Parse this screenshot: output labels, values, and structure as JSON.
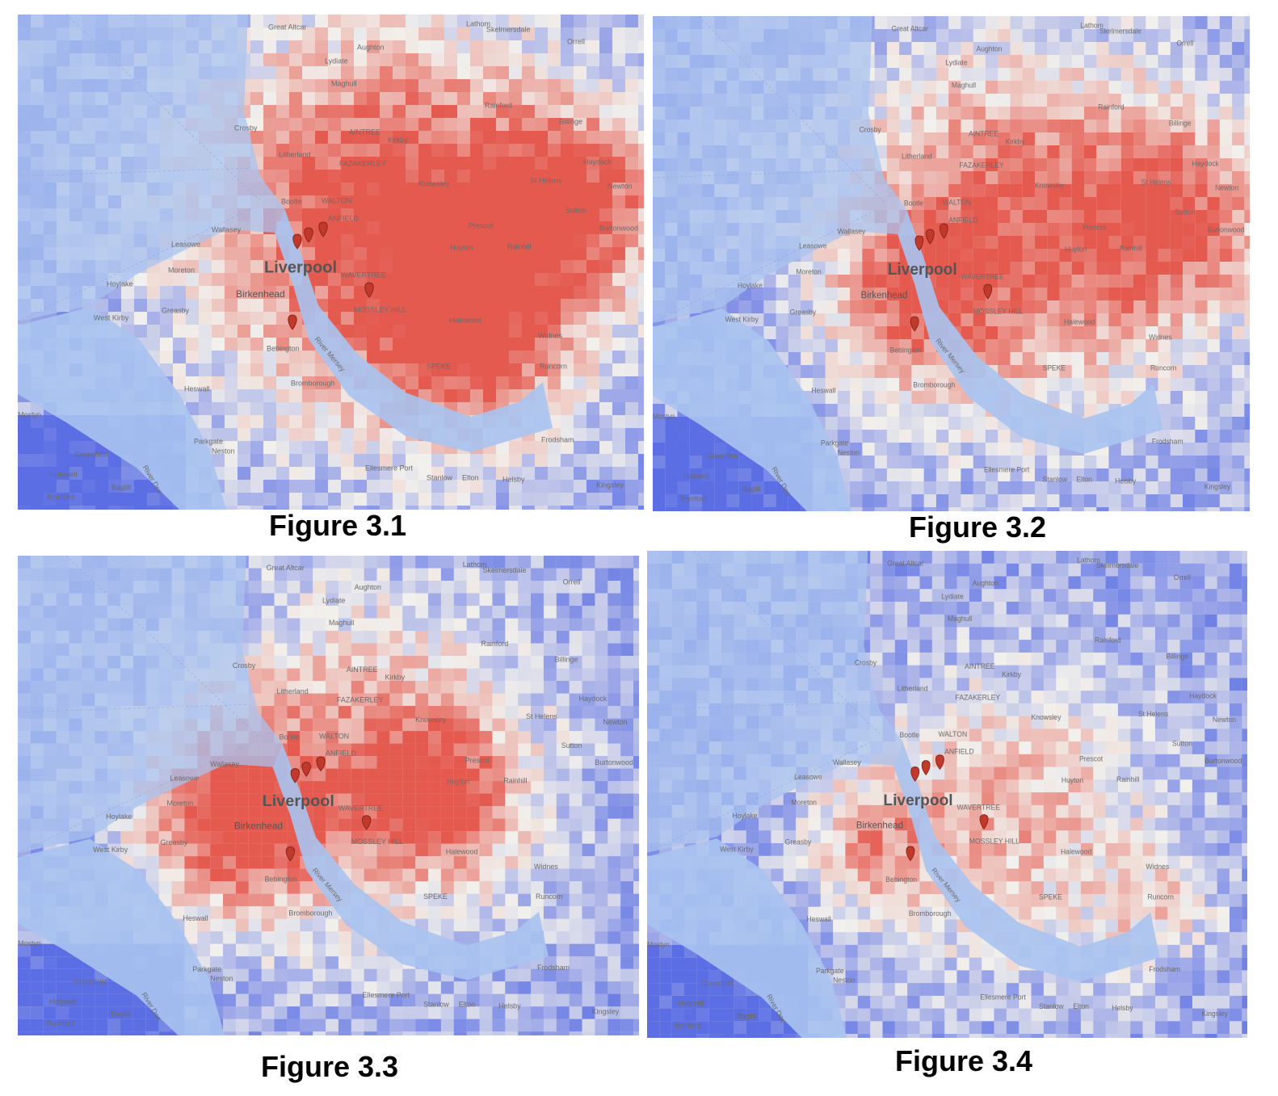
{
  "panels": [
    {
      "caption": "Figure 3.1"
    },
    {
      "caption": "Figure 3.2"
    },
    {
      "caption": "Figure 3.3"
    },
    {
      "caption": "Figure 3.4"
    }
  ],
  "places": [
    "Great Altcar",
    "Lathom",
    "Skelmersdale",
    "Aughton",
    "Orrell",
    "Lydiate",
    "Maghull",
    "Rainford",
    "Crosby",
    "Billinge",
    "Kirkby",
    "Litherland",
    "Haydock",
    "FAZAKERLEY",
    "Knowsley",
    "St Helens",
    "Bootle",
    "WALTON",
    "Sutton",
    "Wallasey",
    "Prescot",
    "Leasowe",
    "Huyton",
    "Rainhill",
    "Liverpool",
    "Moreton",
    "Hoylake",
    "Birkenhead",
    "WAVERTREE",
    "Greasby",
    "West Kirby",
    "MOSSLEY HILL",
    "Halewood",
    "Bebington",
    "Widnes",
    "River Mersey",
    "Runcorn",
    "SPEKE",
    "Bromborough",
    "Heswall",
    "Mostyn",
    "Frodsham",
    "Greenfield",
    "Parkgate",
    "Neston",
    "Ellesmere Port",
    "Holywell",
    "Stanlow",
    "Elton",
    "Helsby",
    "Kingsley",
    "Brynford",
    "Bagillt",
    "River Dee",
    "AINTREE",
    "ANFIELD",
    "Burtonwood",
    "Newton"
  ]
}
